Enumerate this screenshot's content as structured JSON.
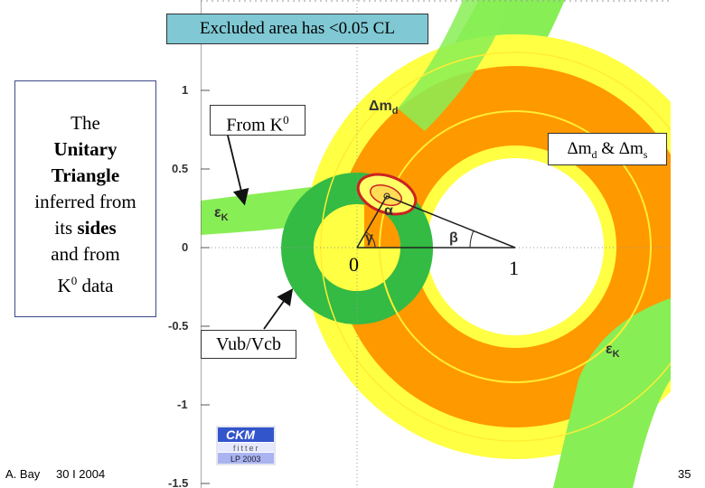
{
  "caption": "Excluded area has <0.05 CL",
  "sidebar": {
    "line1": "The",
    "line2": "Unitary",
    "line3": "Triangle",
    "line4": "inferred from",
    "line5_pre": "its ",
    "line5_bold": "sides",
    "line6": "and from",
    "line7_base": "K",
    "line7_sup": "0",
    "line7_post": " data"
  },
  "annotations": {
    "from_k0_base": "From K",
    "from_k0_sup": "0",
    "dm_text": "Δm",
    "dm_sub": "d",
    "dm_amp": " & Δm",
    "dm_sub2": "s",
    "vub": "Vub/Vcb",
    "zero": "0",
    "one": "1"
  },
  "plot": {
    "y_ticks": [
      "1",
      "0.5",
      "0",
      "-0.5",
      "-1",
      "-1.5"
    ],
    "band_labels": {
      "dmd": "Δm",
      "dmd_sub": "d",
      "epsk_left": "ε",
      "epsk_left_sub": "K",
      "epsk_right": "ε",
      "epsk_right_sub": "K"
    },
    "angles": {
      "alpha": "α",
      "beta": "β",
      "gamma": "γ"
    },
    "logo": {
      "line1": "CKM",
      "line2": "fitter",
      "line3": "LP 2003"
    },
    "colors": {
      "yellow": "#ffff44",
      "orange": "#ff9900",
      "light_green": "#88ee55",
      "dark_green": "#33bb44",
      "red": "#cc2222",
      "teal": "#7fc8d4"
    }
  },
  "footer": {
    "author": "A. Bay",
    "date": "30 I 2004",
    "page": "35"
  }
}
